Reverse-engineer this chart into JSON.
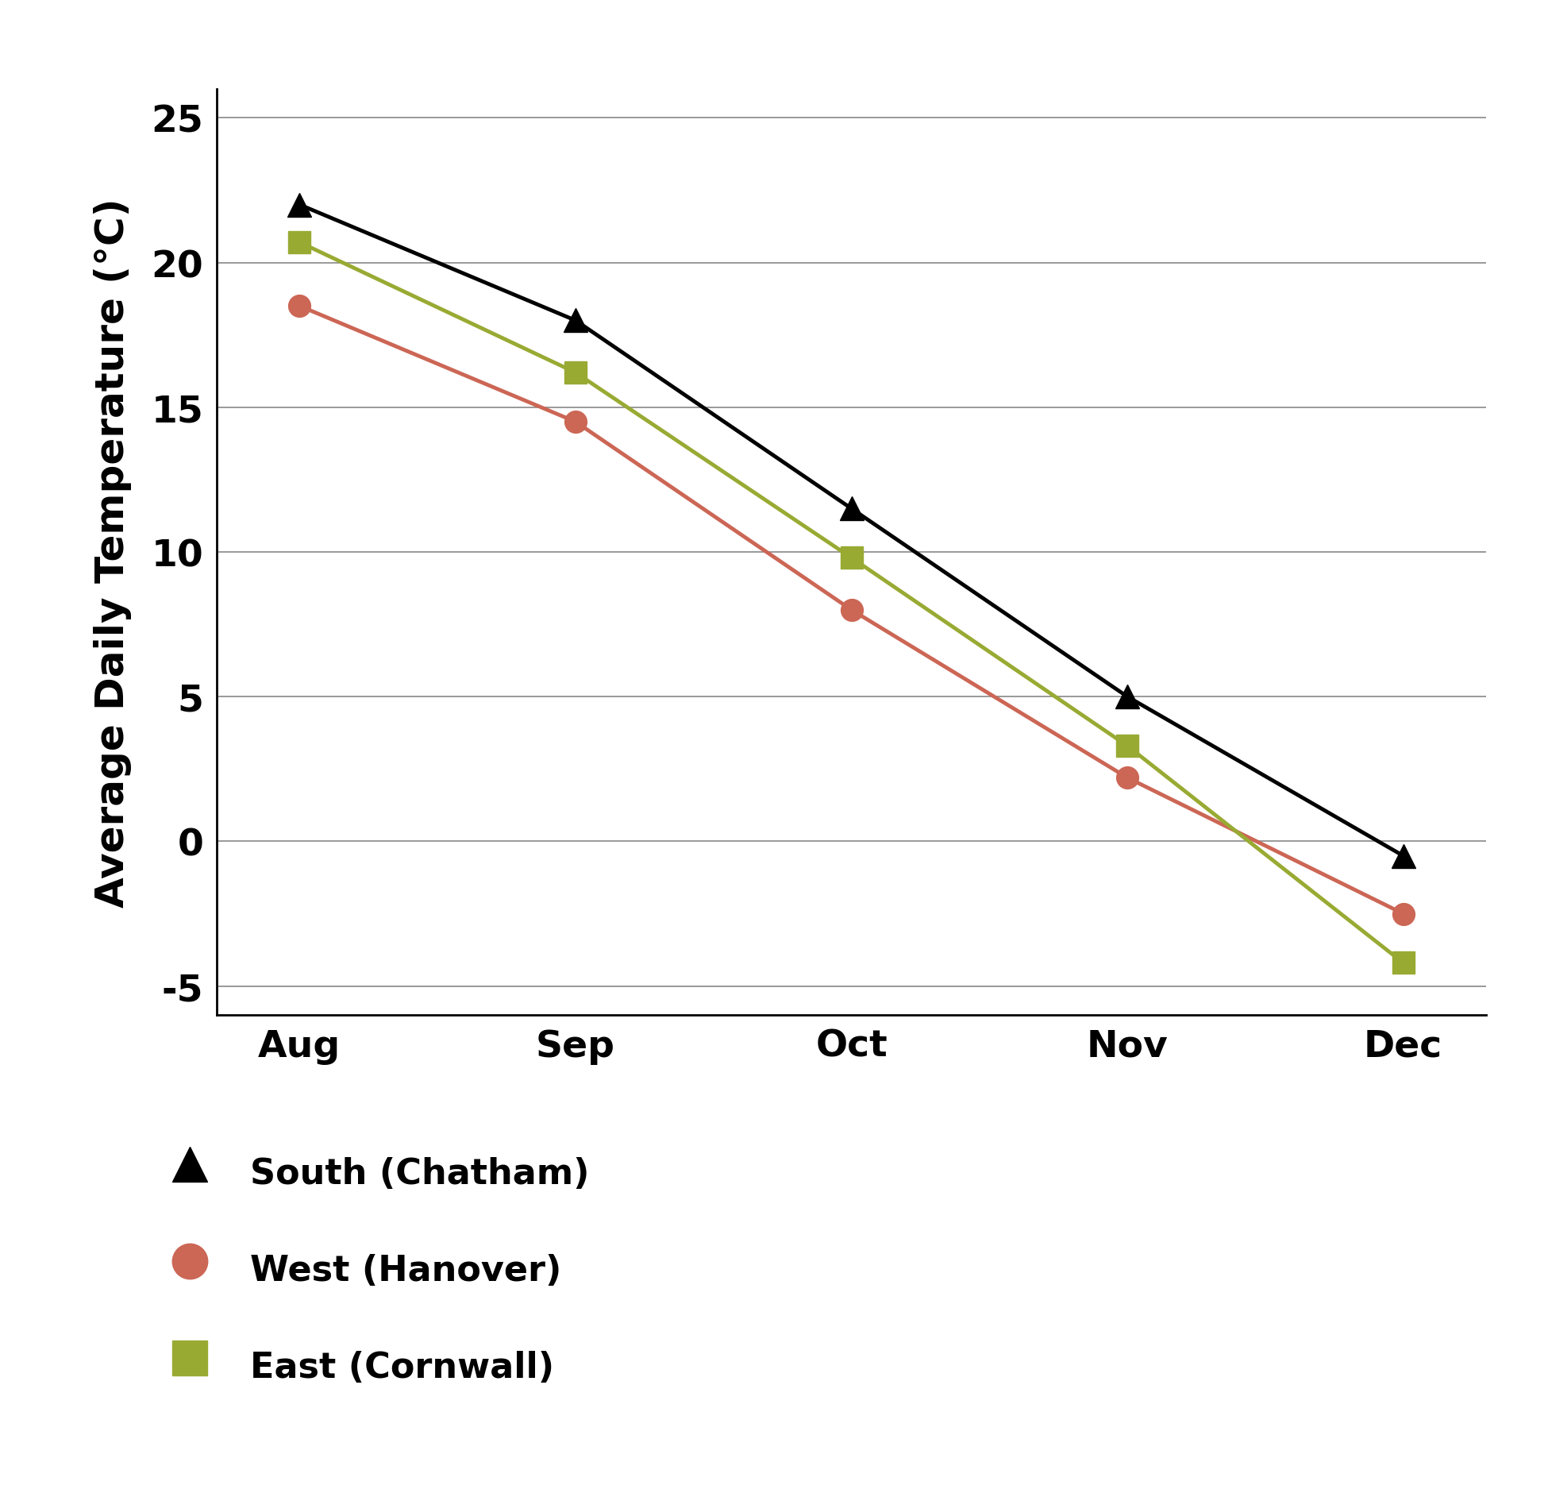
{
  "months": [
    "Aug",
    "Sep",
    "Oct",
    "Nov",
    "Dec"
  ],
  "series": [
    {
      "label": "South (Chatham)",
      "values": [
        22.0,
        18.0,
        11.5,
        5.0,
        -0.5
      ],
      "color": "#000000",
      "marker": "^",
      "markersize": 22,
      "linewidth": 3.5,
      "zorder": 3
    },
    {
      "label": "West (Hanover)",
      "values": [
        18.5,
        14.5,
        8.0,
        2.2,
        -2.5
      ],
      "color": "#CC6655",
      "marker": "o",
      "markersize": 20,
      "linewidth": 3.5,
      "zorder": 2
    },
    {
      "label": "East (Cornwall)",
      "values": [
        20.7,
        16.2,
        9.8,
        3.3,
        -4.2
      ],
      "color": "#99AA33",
      "marker": "s",
      "markersize": 20,
      "linewidth": 3.5,
      "zorder": 2
    }
  ],
  "ylabel": "Average Daily Temperature (°C)",
  "ylim": [
    -6,
    26
  ],
  "yticks": [
    -5,
    0,
    5,
    10,
    15,
    20,
    25
  ],
  "background_color": "#ffffff",
  "grid_color": "#888888",
  "legend_fontsize": 32,
  "ylabel_fontsize": 36,
  "tick_fontsize": 34
}
